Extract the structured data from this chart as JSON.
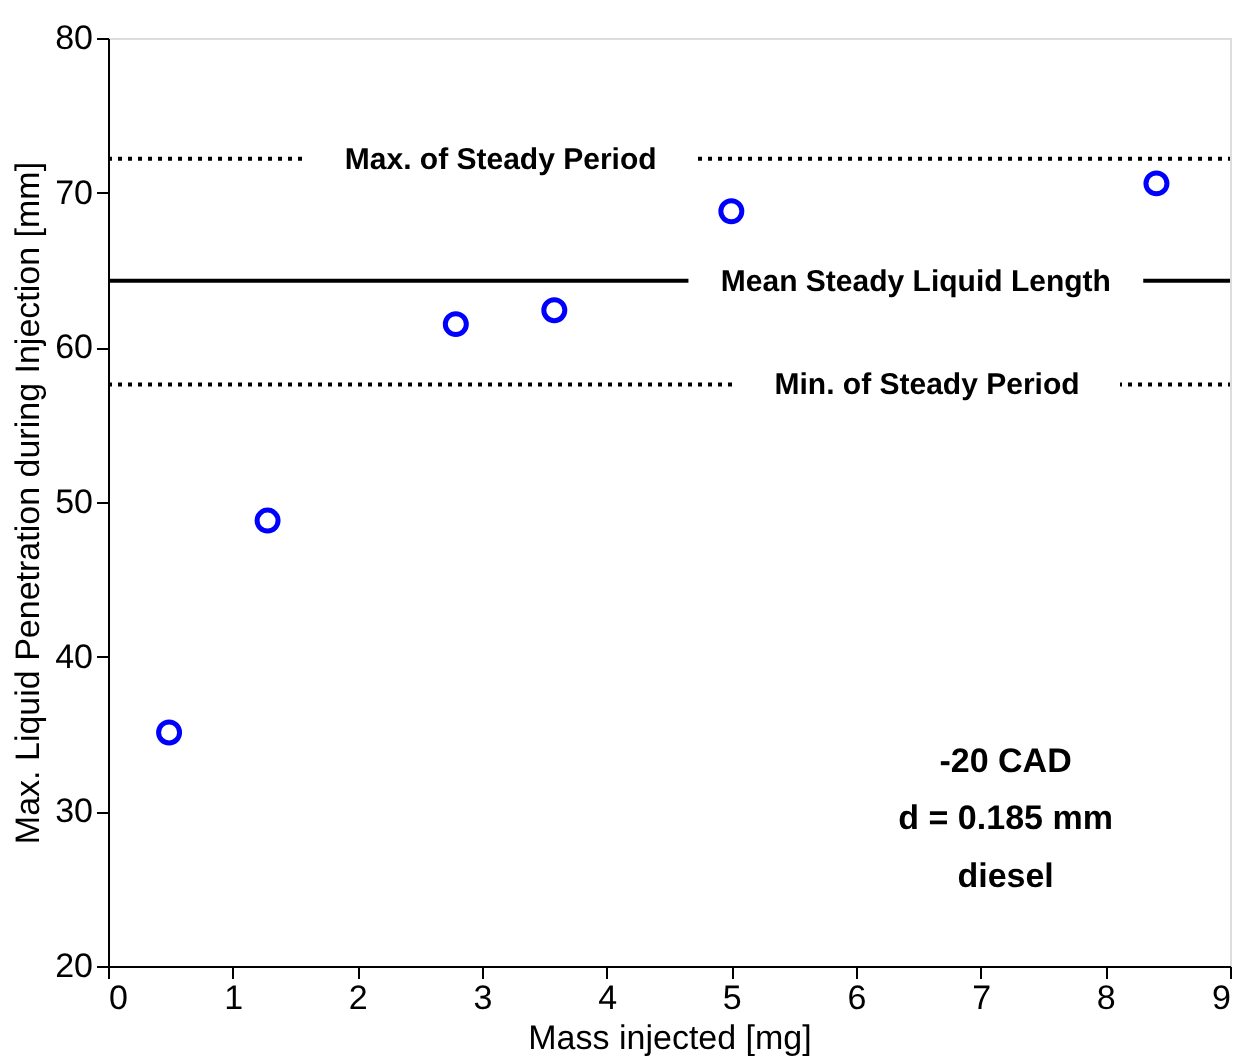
{
  "chart_data": {
    "type": "scatter",
    "xlabel": "Mass injected [mg]",
    "ylabel": "Max. Liquid Penetration during Injection [mm]",
    "x": [
      0.49,
      1.28,
      2.79,
      3.58,
      5.0,
      8.41
    ],
    "series": [
      {
        "color": "#0000ff",
        "values": [
          35.1,
          48.8,
          61.5,
          62.4,
          68.8,
          70.6
        ]
      }
    ],
    "marker": "circle",
    "xlim": [
      0,
      9
    ],
    "xticks": [
      0,
      1,
      2,
      3,
      4,
      5,
      6,
      7,
      8,
      9
    ],
    "ylim": [
      20,
      80
    ],
    "yticks": [
      20,
      30,
      40,
      50,
      60,
      70,
      80
    ],
    "grid": false,
    "ref_lines": [
      {
        "axis": "y",
        "value": 72.2,
        "label": "Max. of Steady Period",
        "line_style": "dotted",
        "color": "#000000"
      },
      {
        "axis": "y",
        "value": 64.3,
        "label": "Mean Steady Liquid Length",
        "line_style": "solid",
        "color": "#000000"
      },
      {
        "axis": "y",
        "value": 57.6,
        "label": "Min. of Steady Period",
        "line_style": "dotted",
        "color": "#000000"
      }
    ],
    "annotations": [
      "-20 CAD",
      "d = 0.185 mm",
      "diesel"
    ]
  }
}
